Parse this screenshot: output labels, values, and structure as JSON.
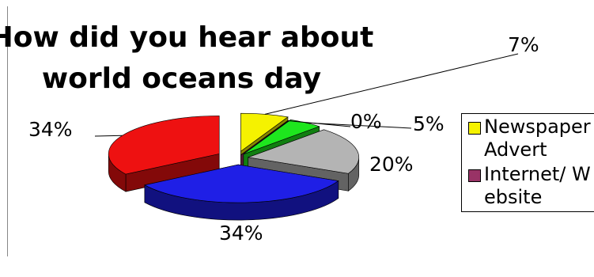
{
  "chart_data": {
    "type": "pie",
    "title": "How did you hear about world oceans day",
    "title_lines": [
      "How did you hear about",
      "world oceans day"
    ],
    "slices": [
      {
        "name": "Newspaper Advert",
        "value": 7,
        "label": "7%",
        "color": "#f5f200"
      },
      {
        "name": "Internet/ Website",
        "value": 0,
        "label": "0%",
        "color": "#993366"
      },
      {
        "name": "",
        "value": 5,
        "label": "5%",
        "color": "#1ee61e"
      },
      {
        "name": "",
        "value": 20,
        "label": "20%",
        "color": "#b4b4b4"
      },
      {
        "name": "",
        "value": 34,
        "label": "34%",
        "color": "#1f1fe6"
      },
      {
        "name": "",
        "value": 34,
        "label": "34%",
        "color": "#ee1111"
      }
    ],
    "legend": {
      "position": "right",
      "entries": [
        {
          "label": "Newspaper Advert",
          "color": "#f5f200"
        },
        {
          "label": "Internet/ Website",
          "color": "#993366"
        }
      ]
    }
  }
}
